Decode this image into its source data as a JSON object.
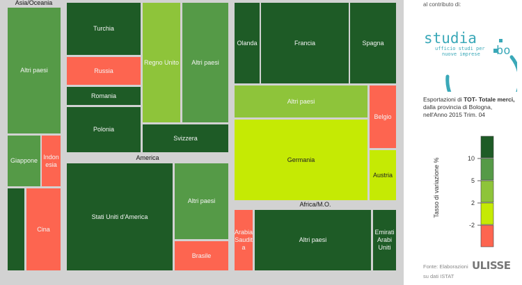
{
  "colors": {
    "dark_green": "#1e5b26",
    "mid_green": "#559a47",
    "light_green": "#8ec43a",
    "lime": "#c5ea04",
    "red": "#fd6550",
    "background": "#d2d2d2"
  },
  "chart_data": {
    "type": "treemap",
    "groups": [
      {
        "name": "Asia/Oceania",
        "items": [
          {
            "name": "Altri paesi",
            "color": "mid_green"
          },
          {
            "name": "Giappone",
            "color": "mid_green"
          },
          {
            "name": "Indon esia",
            "color": "red"
          },
          {
            "name": "",
            "color": "dark_green"
          },
          {
            "name": "Cina",
            "color": "red"
          }
        ]
      },
      {
        "name": "",
        "items": [
          {
            "name": "Turchia",
            "color": "dark_green"
          },
          {
            "name": "Russia",
            "color": "red"
          },
          {
            "name": "Romania",
            "color": "dark_green"
          },
          {
            "name": "Polonia",
            "color": "dark_green"
          },
          {
            "name": "Regno Unito",
            "color": "light_green"
          },
          {
            "name": "Altri paesi",
            "color": "mid_green"
          },
          {
            "name": "Svizzera",
            "color": "dark_green"
          },
          {
            "name": "Olanda",
            "color": "dark_green"
          },
          {
            "name": "Francia",
            "color": "dark_green"
          },
          {
            "name": "Spagna",
            "color": "dark_green"
          },
          {
            "name": "Altri paesi",
            "color": "light_green"
          },
          {
            "name": "Belgio",
            "color": "red"
          },
          {
            "name": "Germania",
            "color": "lime"
          },
          {
            "name": "Austria",
            "color": "lime"
          }
        ]
      },
      {
        "name": "America",
        "items": [
          {
            "name": "Stati Uniti d'America",
            "color": "dark_green"
          },
          {
            "name": "Altri paesi",
            "color": "mid_green"
          },
          {
            "name": "Brasile",
            "color": "red"
          }
        ]
      },
      {
        "name": "Africa/M.O.",
        "items": [
          {
            "name": "Arabia Saudit a",
            "color": "red"
          },
          {
            "name": "Altri paesi",
            "color": "dark_green"
          },
          {
            "name": "Emirati Arabi Uniti",
            "color": "dark_green"
          }
        ]
      }
    ],
    "legend": {
      "title": "Tasso di variazione %",
      "ticks": [
        "10",
        "5",
        "2",
        "-2"
      ],
      "colors": [
        "dark_green",
        "mid_green",
        "light_green",
        "lime",
        "red"
      ]
    }
  },
  "sidebar": {
    "credit": "al contributo di:",
    "logo_word": "studia",
    "logo_tag1": "ufficio studi per",
    "logo_tag2": "nuove imprese",
    "logo_bo": "bo",
    "desc_prefix": "Esportazioni di ",
    "desc_bold": "TOT- Totale merci,",
    "desc_suffix": " dalla provincia di Bologna, nell'Anno 2015 Trim. 04",
    "source_line1": "Fonte: Elaborazioni",
    "source_line2": "su dati ISTAT",
    "ulisse": "ULISSE"
  }
}
